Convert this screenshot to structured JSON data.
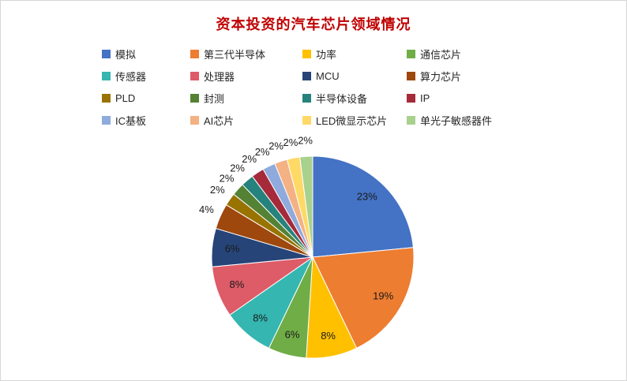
{
  "window": {
    "background": "#ffffff",
    "border_color": "#d6d6d6"
  },
  "chart_data": {
    "type": "pie",
    "title": "资本投资的汽车芯片领域情况",
    "title_color": "#C00000",
    "legend_position": "top",
    "start_angle_deg": 0,
    "direction": "clockwise",
    "categories": [
      "模拟",
      "第三代半导体",
      "功率",
      "通信芯片",
      "传感器",
      "处理器",
      "MCU",
      "算力芯片",
      "PLD",
      "封测",
      "半导体设备",
      "IP",
      "IC基板",
      "AI芯片",
      "LED微显示芯片",
      "单光子敏感器件"
    ],
    "values": [
      23,
      19,
      8,
      6,
      8,
      8,
      6,
      4,
      2,
      2,
      2,
      2,
      2,
      2,
      2,
      2
    ],
    "labels": [
      "23%",
      "19%",
      "8%",
      "6%",
      "8%",
      "8%",
      "6%",
      "4%",
      "2%",
      "2%",
      "2%",
      "2%",
      "2%",
      "2%",
      "2%",
      "2%"
    ],
    "colors": [
      "#4472C4",
      "#ED7D31",
      "#FFC000",
      "#70AD47",
      "#35B6B0",
      "#DE5B68",
      "#264478",
      "#9E480E",
      "#997300",
      "#548235",
      "#26827C",
      "#A52A3A",
      "#8FAADC",
      "#F4B183",
      "#FFD966",
      "#A9D18E"
    ],
    "label_color": "#1a1a1a",
    "slice_border_color": "#FFFFFF",
    "grid": false
  }
}
